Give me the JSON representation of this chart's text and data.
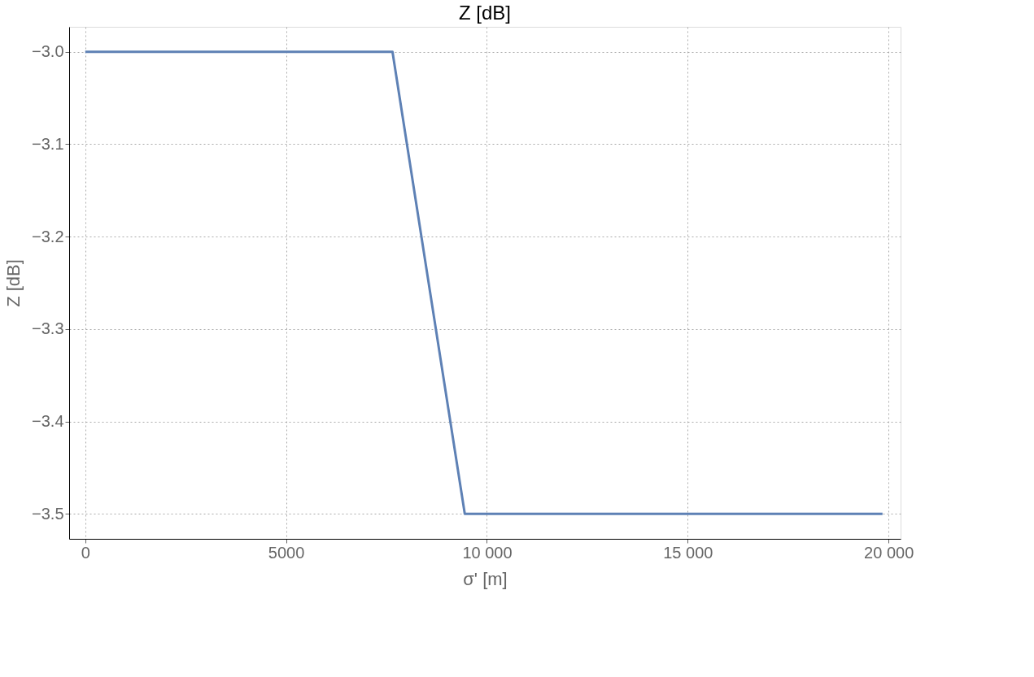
{
  "chart_data": {
    "type": "line",
    "title": "Z [dB]",
    "xlabel": "σ' [m]",
    "ylabel": "Z [dB]",
    "x": [
      0,
      7650,
      9450,
      19850
    ],
    "series": [
      {
        "color": "#5e81b5",
        "values": [
          -3.0,
          -3.0,
          -3.5,
          -3.5
        ]
      }
    ],
    "xlim": [
      -400,
      20300
    ],
    "ylim": [
      -3.527,
      -2.973
    ],
    "xticks": [
      0,
      5000,
      {
        "value": 10000,
        "label": "10 000"
      },
      {
        "value": 15000,
        "label": "15 000"
      },
      {
        "value": 20000,
        "label": "20 000"
      }
    ],
    "yticks": [
      {
        "value": -3.5,
        "label": "−3.5"
      },
      {
        "value": -3.4,
        "label": "−3.4"
      },
      {
        "value": -3.3,
        "label": "−3.3"
      },
      {
        "value": -3.2,
        "label": "−3.2"
      },
      {
        "value": -3.1,
        "label": "−3.1"
      },
      {
        "value": -3.0,
        "label": "−3.0"
      }
    ],
    "grid": true,
    "line_style": "solid",
    "marker": "none",
    "legend": false
  }
}
